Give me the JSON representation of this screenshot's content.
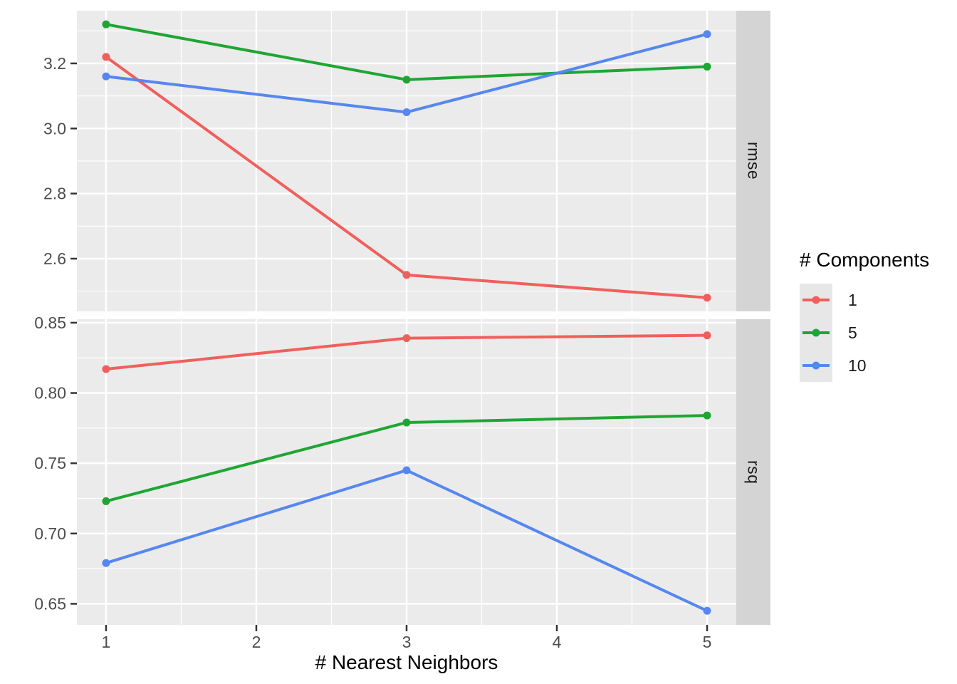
{
  "figure": {
    "x_axis_title": "# Nearest Neighbors",
    "xlim": [
      0.806,
      5.194
    ],
    "x_ticks": [
      {
        "v": 1,
        "label": "1"
      },
      {
        "v": 2,
        "label": "2"
      },
      {
        "v": 3,
        "label": "3"
      },
      {
        "v": 4,
        "label": "4"
      },
      {
        "v": 5,
        "label": "5"
      }
    ],
    "x_minor": [
      1.5,
      2.5,
      3.5,
      4.5
    ]
  },
  "legend": {
    "title": "# Components",
    "items": [
      {
        "label": "1",
        "color": "#F15F5C"
      },
      {
        "label": "5",
        "color": "#1EA633"
      },
      {
        "label": "10",
        "color": "#5687F0"
      }
    ]
  },
  "colors": {
    "panel_bg": "#EBEBEB",
    "strip_bg": "#D4D4D4",
    "grid": "#FFFFFF",
    "tick_text": "#4D4D4D",
    "tick_mark": "#333333",
    "title_text": "#000000"
  },
  "chart_data": [
    {
      "type": "line",
      "facet": "rmse",
      "x": [
        1,
        3,
        5
      ],
      "series": [
        {
          "name": "1",
          "color": "#F15F5C",
          "values": [
            3.22,
            2.55,
            2.48
          ]
        },
        {
          "name": "5",
          "color": "#1EA633",
          "values": [
            3.32,
            3.15,
            3.19
          ]
        },
        {
          "name": "10",
          "color": "#5687F0",
          "values": [
            3.16,
            3.05,
            3.29
          ]
        }
      ],
      "ylim": [
        2.438,
        3.362
      ],
      "y_ticks": [
        {
          "v": 3.2,
          "label": "3.2"
        },
        {
          "v": 3.0,
          "label": "3.0"
        },
        {
          "v": 2.8,
          "label": "2.8"
        },
        {
          "v": 2.6,
          "label": "2.6"
        }
      ],
      "y_minor": [
        3.3,
        3.1,
        2.9,
        2.7,
        2.5
      ],
      "legend_title": "# Components",
      "xlabel": "# Nearest Neighbors",
      "grid": true,
      "legend_position": "right"
    },
    {
      "type": "line",
      "facet": "rsq",
      "x": [
        1,
        3,
        5
      ],
      "series": [
        {
          "name": "1",
          "color": "#F15F5C",
          "values": [
            0.817,
            0.839,
            0.841
          ]
        },
        {
          "name": "5",
          "color": "#1EA633",
          "values": [
            0.723,
            0.779,
            0.784
          ]
        },
        {
          "name": "10",
          "color": "#5687F0",
          "values": [
            0.679,
            0.745,
            0.645
          ]
        }
      ],
      "ylim": [
        0.635,
        0.8525
      ],
      "y_ticks": [
        {
          "v": 0.85,
          "label": "0.85"
        },
        {
          "v": 0.8,
          "label": "0.80"
        },
        {
          "v": 0.75,
          "label": "0.75"
        },
        {
          "v": 0.7,
          "label": "0.70"
        },
        {
          "v": 0.65,
          "label": "0.65"
        }
      ],
      "y_minor": [
        0.825,
        0.775,
        0.725,
        0.675
      ],
      "legend_title": "# Components",
      "xlabel": "# Nearest Neighbors",
      "grid": true,
      "legend_position": "right"
    }
  ]
}
